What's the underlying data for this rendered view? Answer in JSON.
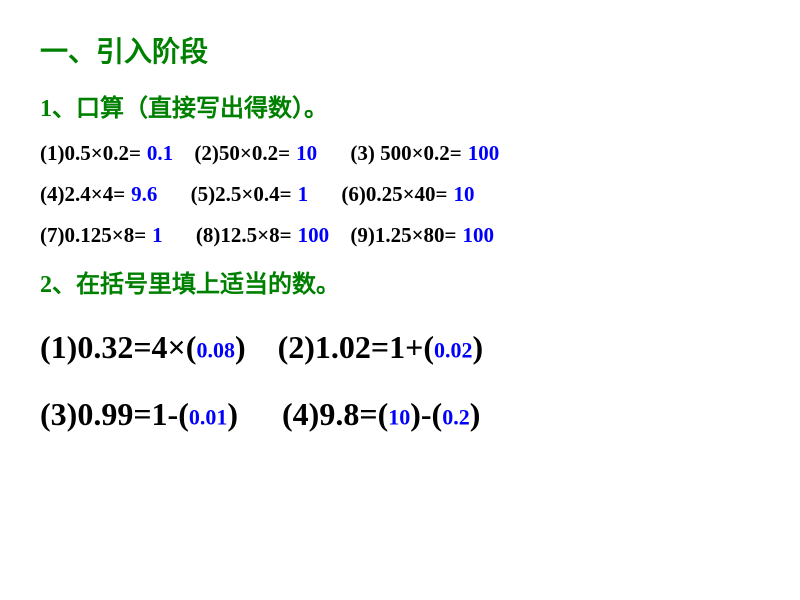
{
  "colors": {
    "heading": "#008000",
    "text": "#000000",
    "answer": "#0000ff",
    "background": "#ffffff"
  },
  "heading1": "一、引入阶段",
  "sub1": "1、口算（直接写出得数）。",
  "r1": {
    "q1": "(1)0.5×0.2=",
    "a1": "0.1",
    "q2": "(2)50×0.2=",
    "a2": "10",
    "q3": "(3) 500×0.2=",
    "a3": "100"
  },
  "r2": {
    "q1": "(4)2.4×4=",
    "a1": "9.6",
    "q2": "(5)2.5×0.4=",
    "a2": "1",
    "q3": "(6)0.25×40=",
    "a3": "10"
  },
  "r3": {
    "q1": "(7)0.125×8=",
    "a1": "1",
    "q2": "(8)12.5×8=",
    "a2": "100",
    "q3": "(9)1.25×80=",
    "a3": "100"
  },
  "sub2": "2、在括号里填上适当的数。",
  "f1": {
    "q1a": "(1)0.32=4×(",
    "a1": "0.08",
    "q1b": ")",
    "q2a": "(2)1.02=1+(",
    "a2": "0.02",
    "q2b": ")"
  },
  "f2": {
    "q1a": "(3)0.99=1-(",
    "a1": "0.01",
    "q1b": ")",
    "q2a": "(4)9.8=(",
    "a2": "10",
    "q2b": ")-(",
    "a3": "0.2",
    "q2c": ")"
  }
}
